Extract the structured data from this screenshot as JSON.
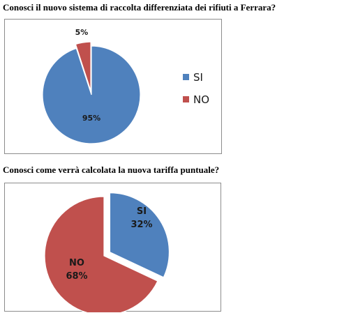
{
  "questions": [
    "Conosci il nuovo sistema di raccolta differenziata dei rifiuti a Ferrara?",
    "Conosci come verrà calcolata la nuova tariffa puntuale?"
  ],
  "colors": {
    "si": "#4f81bd",
    "no": "#c0504d"
  },
  "chart_data": [
    {
      "type": "pie",
      "title": "Conosci il nuovo sistema di raccolta differenziata dei rifiuti a Ferrara?",
      "categories": [
        "SI",
        "NO"
      ],
      "values": [
        95,
        5
      ],
      "data_labels": [
        "95%",
        "5%"
      ],
      "colors": [
        "#4f81bd",
        "#c0504d"
      ],
      "exploded": "NO",
      "legend": {
        "placement": "right",
        "entries": [
          "SI",
          "NO"
        ]
      }
    },
    {
      "type": "pie",
      "title": "Conosci come verrà calcolata la nuova tariffa puntuale?",
      "categories": [
        "SI",
        "NO"
      ],
      "values": [
        32,
        68
      ],
      "data_labels": [
        "32%",
        "68%"
      ],
      "colors": [
        "#4f81bd",
        "#c0504d"
      ],
      "exploded": "SI",
      "legend": null
    }
  ]
}
